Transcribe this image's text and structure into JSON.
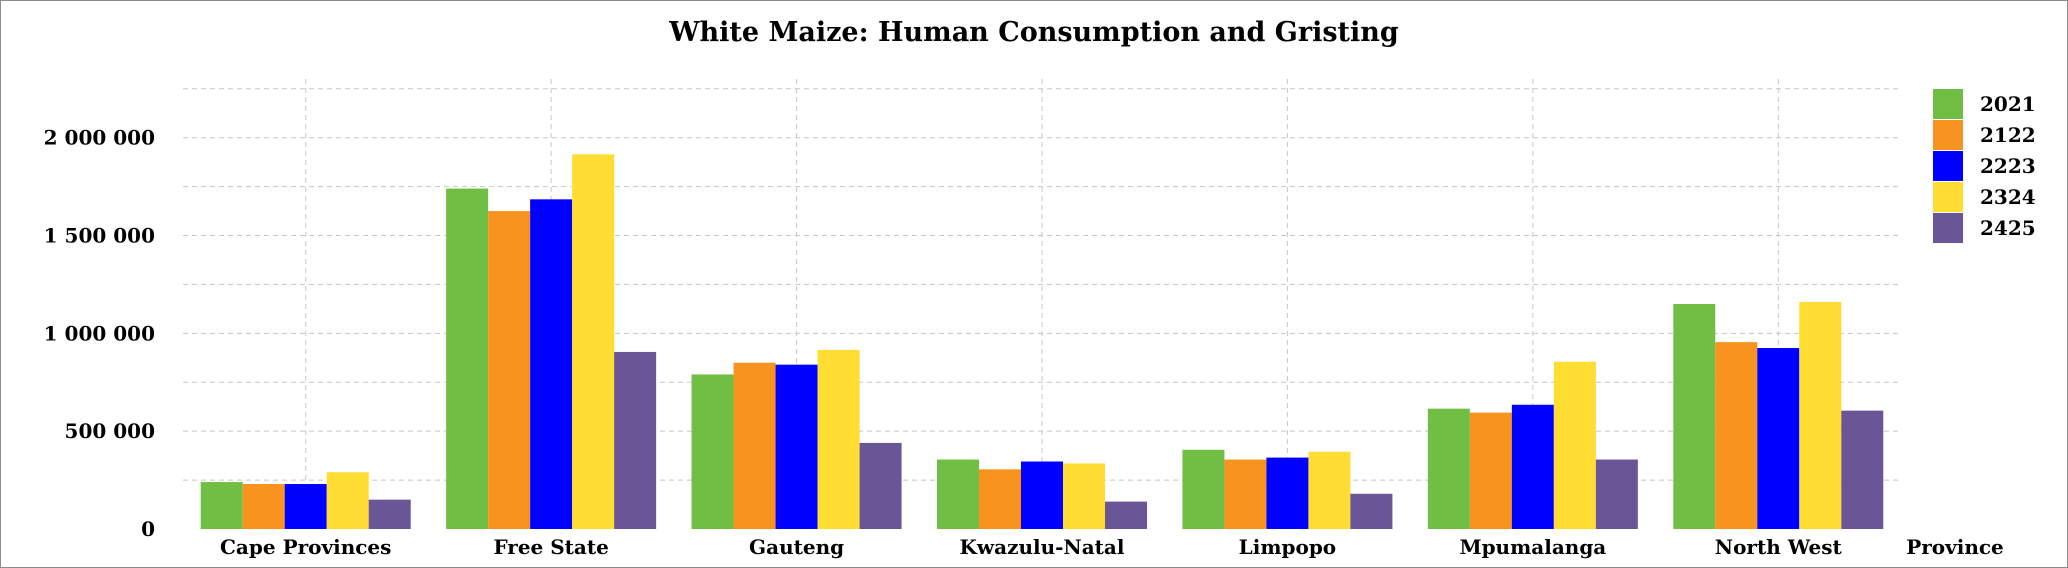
{
  "chart_data": {
    "type": "bar",
    "title": "White Maize: Human Consumption and Gristing",
    "xlabel": "Province",
    "ylabel": "",
    "ylim": [
      0,
      2300000
    ],
    "yticks": [
      0,
      500000,
      1000000,
      1500000,
      2000000
    ],
    "ytick_labels": [
      "0",
      "500 000",
      "1 000 000",
      "1 500 000",
      "2 000 000"
    ],
    "grid": true,
    "legend_position": "top-right",
    "categories": [
      "Cape Provinces",
      "Free State",
      "Gauteng",
      "Kwazulu-Natal",
      "Limpopo",
      "Mpumalanga",
      "North West"
    ],
    "series": [
      {
        "name": "2021",
        "color": "#70bf44",
        "values": [
          240000,
          1740000,
          790000,
          355000,
          405000,
          615000,
          1150000
        ]
      },
      {
        "name": "2122",
        "color": "#f7931e",
        "values": [
          230000,
          1625000,
          850000,
          305000,
          355000,
          595000,
          955000
        ]
      },
      {
        "name": "2223",
        "color": "#0000ff",
        "values": [
          230000,
          1685000,
          840000,
          345000,
          365000,
          635000,
          925000
        ]
      },
      {
        "name": "2324",
        "color": "#ffdd33",
        "values": [
          290000,
          1915000,
          915000,
          335000,
          395000,
          855000,
          1160000
        ]
      },
      {
        "name": "2425",
        "color": "#6a5597",
        "values": [
          150000,
          905000,
          440000,
          140000,
          180000,
          355000,
          605000
        ]
      }
    ]
  }
}
